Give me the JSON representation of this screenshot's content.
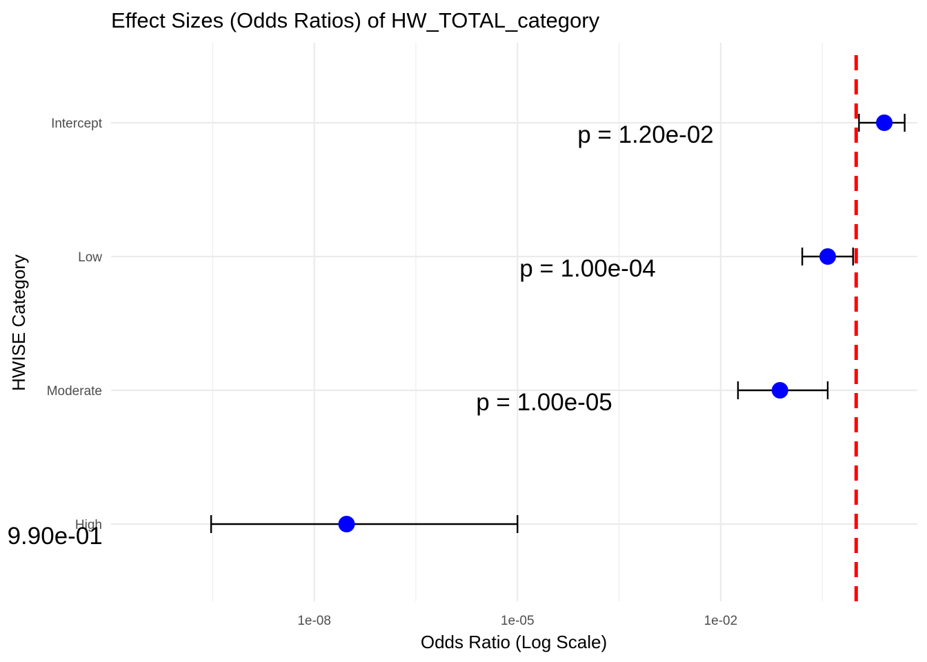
{
  "chart_data": {
    "type": "scatter",
    "title": "Effect Sizes (Odds Ratios) of HW_TOTAL_category",
    "xlabel": "Odds Ratio (Log Scale)",
    "ylabel": "HWISE Category",
    "x_scale": "log10",
    "xlim": [
      1e-11,
      8.0
    ],
    "x_ticks": [
      1e-08,
      1e-05,
      0.01
    ],
    "x_tick_labels": [
      "1e-08",
      "1e-05",
      "1e-02"
    ],
    "categories": [
      "Intercept",
      "Low",
      "Moderate",
      "High"
    ],
    "estimates": [
      2.6,
      0.38,
      0.075,
      3e-08
    ],
    "ci_lower": [
      1.1,
      0.16,
      0.018,
      3e-10
    ],
    "ci_upper": [
      5.2,
      0.9,
      0.38,
      1e-05
    ],
    "p_labels": [
      "p = 1.20e-02",
      "p = 1.00e-04",
      "p = 1.00e-05",
      "p = 9.90e-01"
    ],
    "reference_line": {
      "x": 1,
      "style": "dashed"
    },
    "grid": true,
    "colors": {
      "point": "#0000ff",
      "reference_line": "#ff0000",
      "error_bar": "#000000",
      "grid": "#ebebeb"
    }
  }
}
